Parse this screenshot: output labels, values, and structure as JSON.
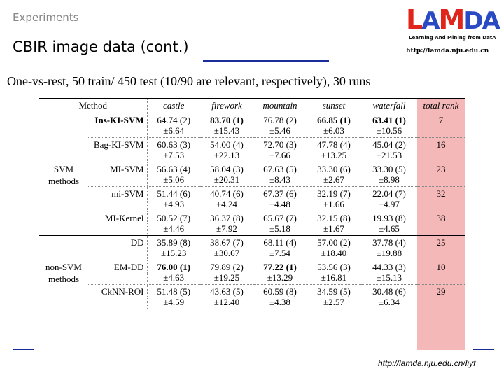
{
  "header": {
    "section_label": "Experiments",
    "title": "CBIR image data (cont.)",
    "logo_text": "LAMDA",
    "logo_subtitle": "Learning And Mining from DatA",
    "url": "http://lamda.nju.edu.cn"
  },
  "subtitle": "One-vs-rest, 50 train/ 450 test (10/90 are relevant, respectively), 30 runs",
  "table": {
    "columns": [
      "Method",
      "castle",
      "firework",
      "mountain",
      "sunset",
      "waterfall",
      "total rank"
    ],
    "groups": [
      {
        "label": "SVM methods",
        "label_lines": [
          "SVM",
          "methods"
        ],
        "rows": [
          {
            "method": "Ins-KI-SVM",
            "bold_method": true,
            "means": [
              "64.74 (2)",
              "83.70 (1)",
              "76.78 (2)",
              "66.85 (1)",
              "63.41 (1)"
            ],
            "stds": [
              "±6.64",
              "±15.43",
              "±5.46",
              "±6.03",
              "±10.56"
            ],
            "bold": [
              false,
              true,
              false,
              true,
              true
            ],
            "rank": "7"
          },
          {
            "method": "Bag-KI-SVM",
            "bold_method": false,
            "means": [
              "60.63 (3)",
              "54.00 (4)",
              "72.70 (3)",
              "47.78 (4)",
              "45.04 (2)"
            ],
            "stds": [
              "±7.53",
              "±22.13",
              "±7.66",
              "±13.25",
              "±21.53"
            ],
            "bold": [
              false,
              false,
              false,
              false,
              false
            ],
            "rank": "16"
          },
          {
            "method": "MI-SVM",
            "bold_method": false,
            "means": [
              "56.63 (4)",
              "58.04 (3)",
              "67.63 (5)",
              "33.30 (6)",
              "33.30 (5)"
            ],
            "stds": [
              "±5.06",
              "±20.31",
              "±8.43",
              "±2.67",
              "±8.98"
            ],
            "bold": [
              false,
              false,
              false,
              false,
              false
            ],
            "rank": "23"
          },
          {
            "method": "mi-SVM",
            "bold_method": false,
            "means": [
              "51.44 (6)",
              "40.74 (6)",
              "67.37 (6)",
              "32.19 (7)",
              "22.04 (7)"
            ],
            "stds": [
              "±4.93",
              "±4.24",
              "±4.48",
              "±1.66",
              "±4.97"
            ],
            "bold": [
              false,
              false,
              false,
              false,
              false
            ],
            "rank": "32"
          },
          {
            "method": "MI-Kernel",
            "bold_method": false,
            "means": [
              "50.52 (7)",
              "36.37 (8)",
              "65.67 (7)",
              "32.15 (8)",
              "19.93 (8)"
            ],
            "stds": [
              "±4.46",
              "±7.92",
              "±5.18",
              "±1.67",
              "±4.65"
            ],
            "bold": [
              false,
              false,
              false,
              false,
              false
            ],
            "rank": "38"
          }
        ]
      },
      {
        "label": "non-SVM methods",
        "label_lines": [
          "non-SVM",
          "methods"
        ],
        "rows": [
          {
            "method": "DD",
            "bold_method": false,
            "means": [
              "35.89 (8)",
              "38.67 (7)",
              "68.11 (4)",
              "57.00 (2)",
              "37.78 (4)"
            ],
            "stds": [
              "±15.23",
              "±30.67",
              "±7.54",
              "±18.40",
              "±19.88"
            ],
            "bold": [
              false,
              false,
              false,
              false,
              false
            ],
            "rank": "25"
          },
          {
            "method": "EM-DD",
            "bold_method": false,
            "means": [
              "76.00 (1)",
              "79.89 (2)",
              "77.22 (1)",
              "53.56 (3)",
              "44.33 (3)"
            ],
            "stds": [
              "±4.63",
              "±19.25",
              "±13.29",
              "±16.81",
              "±15.13"
            ],
            "bold": [
              true,
              false,
              true,
              false,
              false
            ],
            "rank": "10"
          },
          {
            "method": "CkNN-ROI",
            "bold_method": false,
            "means": [
              "51.48 (5)",
              "43.63 (5)",
              "60.59 (8)",
              "34.59 (5)",
              "30.48 (6)"
            ],
            "stds": [
              "±4.59",
              "±12.40",
              "±4.38",
              "±2.57",
              "±6.34"
            ],
            "bold": [
              false,
              false,
              false,
              false,
              false
            ],
            "rank": "29"
          }
        ]
      }
    ]
  },
  "footer": {
    "url": "http://lamda.nju.edu.cn/liyf"
  },
  "colors": {
    "rank_highlight": "#f4b8b8",
    "accent_rule": "#1a2c9a",
    "logo_red": "#e0261a",
    "logo_blue": "#2a4ac4"
  }
}
